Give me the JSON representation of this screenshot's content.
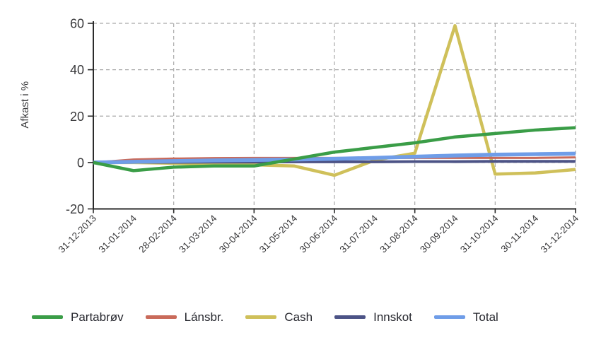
{
  "chart_data": {
    "type": "line",
    "title": "",
    "xlabel": "",
    "ylabel": "Afkast i %",
    "ylim": [
      -20,
      60
    ],
    "yticks": [
      60,
      40,
      20,
      0,
      -20
    ],
    "grid": "dashed, vertical gridlines at every other date",
    "legend_position": "bottom",
    "categories": [
      "31-12-2013",
      "31-01-2014",
      "28-02-2014",
      "31-03-2014",
      "30-04-2014",
      "31-05-2014",
      "30-06-2014",
      "31-07-2014",
      "31-08-2014",
      "30-09-2014",
      "31-10-2014",
      "30-11-2014",
      "31-12-2014"
    ],
    "series": [
      {
        "name": "Partabrøv",
        "color": "#3a9d47",
        "values": [
          0,
          -3.5,
          -2,
          -1.5,
          -1.5,
          1.5,
          4.5,
          6.5,
          8.5,
          11,
          12.5,
          14,
          15
        ]
      },
      {
        "name": "Lánsbr.",
        "color": "#c96a5a",
        "values": [
          0,
          1.3,
          1.7,
          1.9,
          2,
          2,
          2,
          2,
          2,
          2,
          2,
          2,
          2.2
        ]
      },
      {
        "name": "Cash",
        "color": "#cfc05a",
        "values": [
          0,
          0,
          -0.3,
          -0.8,
          -1,
          -1.5,
          -5.5,
          1,
          4,
          59,
          -5,
          -4.5,
          -3
        ]
      },
      {
        "name": "Innskot",
        "color": "#4c5386",
        "values": [
          0,
          0.1,
          0.1,
          0.2,
          0.2,
          0.3,
          0.3,
          0.3,
          0.4,
          0.4,
          0.5,
          0.5,
          0.5
        ]
      },
      {
        "name": "Total",
        "color": "#6f9de8",
        "values": [
          0,
          0.3,
          0.6,
          0.9,
          1.1,
          1.3,
          1.6,
          2,
          2.5,
          3,
          3.4,
          3.6,
          3.8
        ]
      }
    ]
  }
}
